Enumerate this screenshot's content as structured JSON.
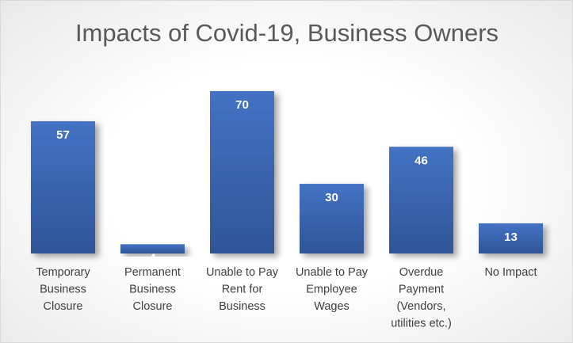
{
  "chart_data": {
    "type": "bar",
    "title": "Impacts of Covid-19, Business Owners",
    "categories": [
      [
        "Temporary",
        "Business",
        "Closure"
      ],
      [
        "Permanent",
        "Business",
        "Closure"
      ],
      [
        "Unable to Pay",
        "Rent for",
        "Business"
      ],
      [
        "Unable to Pay",
        "Employee",
        "Wages"
      ],
      [
        "Overdue",
        "Payment",
        "(Vendors,",
        "utilities etc.)"
      ],
      [
        "No Impact"
      ]
    ],
    "values": [
      57,
      4,
      70,
      30,
      46,
      13
    ],
    "ylim": [
      0,
      70
    ],
    "grid": false,
    "legend": "none",
    "colors": {
      "bar_top": "#4472c4",
      "bar_bottom": "#2f5597",
      "value_label": "#ffffff",
      "title": "#595959",
      "category_label": "#404040"
    }
  }
}
